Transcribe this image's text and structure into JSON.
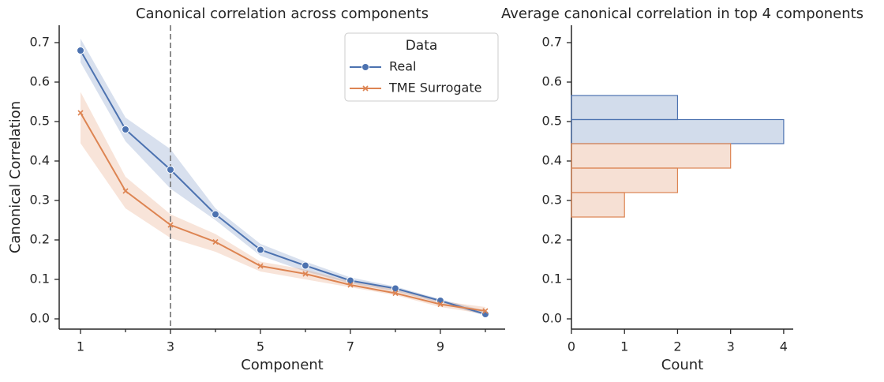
{
  "chart_data": [
    {
      "type": "line",
      "title": "Canonical correlation across components",
      "x_label": "Component",
      "y_label": "Canonical Correlation",
      "x": [
        1,
        2,
        3,
        4,
        5,
        6,
        7,
        8,
        9,
        10
      ],
      "series": [
        {
          "name": "Real",
          "color": "#4c72b0",
          "marker": "circle",
          "values": [
            0.68,
            0.48,
            0.378,
            0.265,
            0.175,
            0.135,
            0.097,
            0.077,
            0.046,
            0.012
          ],
          "upper": [
            0.71,
            0.51,
            0.43,
            0.28,
            0.19,
            0.145,
            0.105,
            0.082,
            0.05,
            0.02
          ],
          "lower": [
            0.65,
            0.45,
            0.33,
            0.25,
            0.16,
            0.12,
            0.09,
            0.07,
            0.04,
            0.008
          ]
        },
        {
          "name": "TME Surrogate",
          "color": "#dd8452",
          "marker": "x",
          "values": [
            0.522,
            0.324,
            0.238,
            0.195,
            0.134,
            0.114,
            0.086,
            0.065,
            0.037,
            0.02
          ],
          "upper": [
            0.575,
            0.36,
            0.265,
            0.215,
            0.145,
            0.125,
            0.095,
            0.075,
            0.045,
            0.03
          ],
          "lower": [
            0.445,
            0.28,
            0.205,
            0.17,
            0.12,
            0.1,
            0.08,
            0.06,
            0.03,
            0.012
          ]
        }
      ],
      "vline": 3,
      "vline_color": "#808080",
      "xlim": [
        0.526,
        10.44
      ],
      "xticks": [
        1,
        3,
        5,
        7,
        9
      ],
      "xminorticks": [
        2,
        4,
        6,
        8,
        10
      ],
      "ylim": [
        -0.026,
        0.744
      ],
      "yticks": [
        {
          "value": 0,
          "label": "0.0"
        },
        0.1,
        0.2,
        0.3,
        0.4,
        0.5,
        0.6,
        0.7
      ],
      "legend": {
        "title": "Data",
        "loc": "upper right"
      }
    },
    {
      "type": "histogram",
      "orientation": "horizontal",
      "title": "Average canonical correlation in top 4 components",
      "x_label": "Count",
      "series": [
        {
          "name": "Real",
          "color": "#4c72b0",
          "bins": [
            0.444,
            0.505,
            0.566
          ],
          "values": [
            4,
            2
          ]
        },
        {
          "name": "TME Surrogate",
          "color": "#dd8452",
          "bins": [
            0.258,
            0.32,
            0.382,
            0.444
          ],
          "values": [
            1,
            2,
            3
          ]
        }
      ],
      "xlim": [
        0,
        4.18
      ],
      "xticks": [
        0,
        1,
        2,
        3,
        4
      ],
      "ylim": [
        -0.026,
        0.744
      ],
      "yticks": [
        {
          "value": 0,
          "label": "0.0"
        },
        0.1,
        0.2,
        0.3,
        0.4,
        0.5,
        0.6,
        0.7
      ]
    }
  ]
}
